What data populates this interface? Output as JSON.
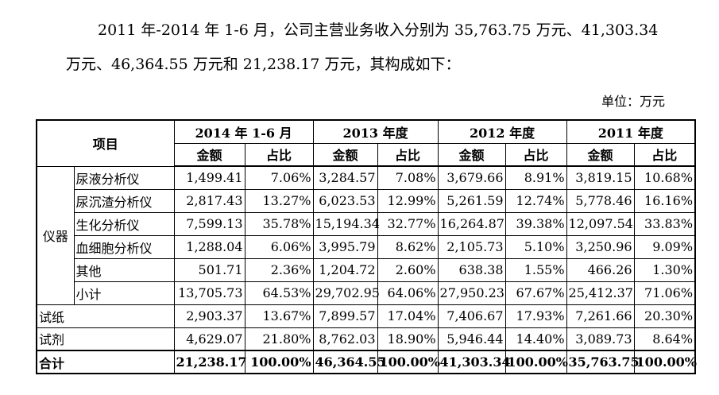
{
  "paragraph": {
    "line1": "2011 年-2014 年 1-6 月，公司主营业务收入分别为 35,763.75 万元、41,303.34",
    "line2": "万元、46,364.55 万元和 21,238.17 万元，其构成如下："
  },
  "unit_label": "单位：万元",
  "table": {
    "item_header": "项目",
    "periods": [
      "2014 年 1-6 月",
      "2013 年度",
      "2012 年度",
      "2011 年度"
    ],
    "sub_headers": [
      "金额",
      "占比"
    ],
    "group_label": "仪器",
    "instrument_rows": [
      {
        "name": "尿液分析仪",
        "values": [
          "1,499.41",
          "7.06%",
          "3,284.57",
          "7.08%",
          "3,679.66",
          "8.91%",
          "3,819.15",
          "10.68%"
        ]
      },
      {
        "name": "尿沉渣分析仪",
        "values": [
          "2,817.43",
          "13.27%",
          "6,023.53",
          "12.99%",
          "5,261.59",
          "12.74%",
          "5,778.46",
          "16.16%"
        ]
      },
      {
        "name": "生化分析仪",
        "values": [
          "7,599.13",
          "35.78%",
          "15,194.34",
          "32.77%",
          "16,264.87",
          "39.38%",
          "12,097.54",
          "33.83%"
        ]
      },
      {
        "name": "血细胞分析仪",
        "values": [
          "1,288.04",
          "6.06%",
          "3,995.79",
          "8.62%",
          "2,105.73",
          "5.10%",
          "3,250.96",
          "9.09%"
        ]
      },
      {
        "name": "其他",
        "values": [
          "501.71",
          "2.36%",
          "1,204.72",
          "2.60%",
          "638.38",
          "1.55%",
          "466.26",
          "1.30%"
        ]
      },
      {
        "name": "小计",
        "values": [
          "13,705.73",
          "64.53%",
          "29,702.95",
          "64.06%",
          "27,950.23",
          "67.67%",
          "25,412.37",
          "71.06%"
        ]
      }
    ],
    "other_rows": [
      {
        "name": "试纸",
        "values": [
          "2,903.37",
          "13.67%",
          "7,899.57",
          "17.04%",
          "7,406.67",
          "17.93%",
          "7,261.66",
          "20.30%"
        ]
      },
      {
        "name": "试剂",
        "values": [
          "4,629.07",
          "21.80%",
          "8,762.03",
          "18.90%",
          "5,946.44",
          "14.40%",
          "3,089.73",
          "8.64%"
        ]
      }
    ],
    "total_row": {
      "name": "合计",
      "values": [
        "21,238.17",
        "100.00%",
        "46,364.55",
        "100.00%",
        "41,303.34",
        "100.00%",
        "35,763.75",
        "100.00%"
      ]
    }
  }
}
